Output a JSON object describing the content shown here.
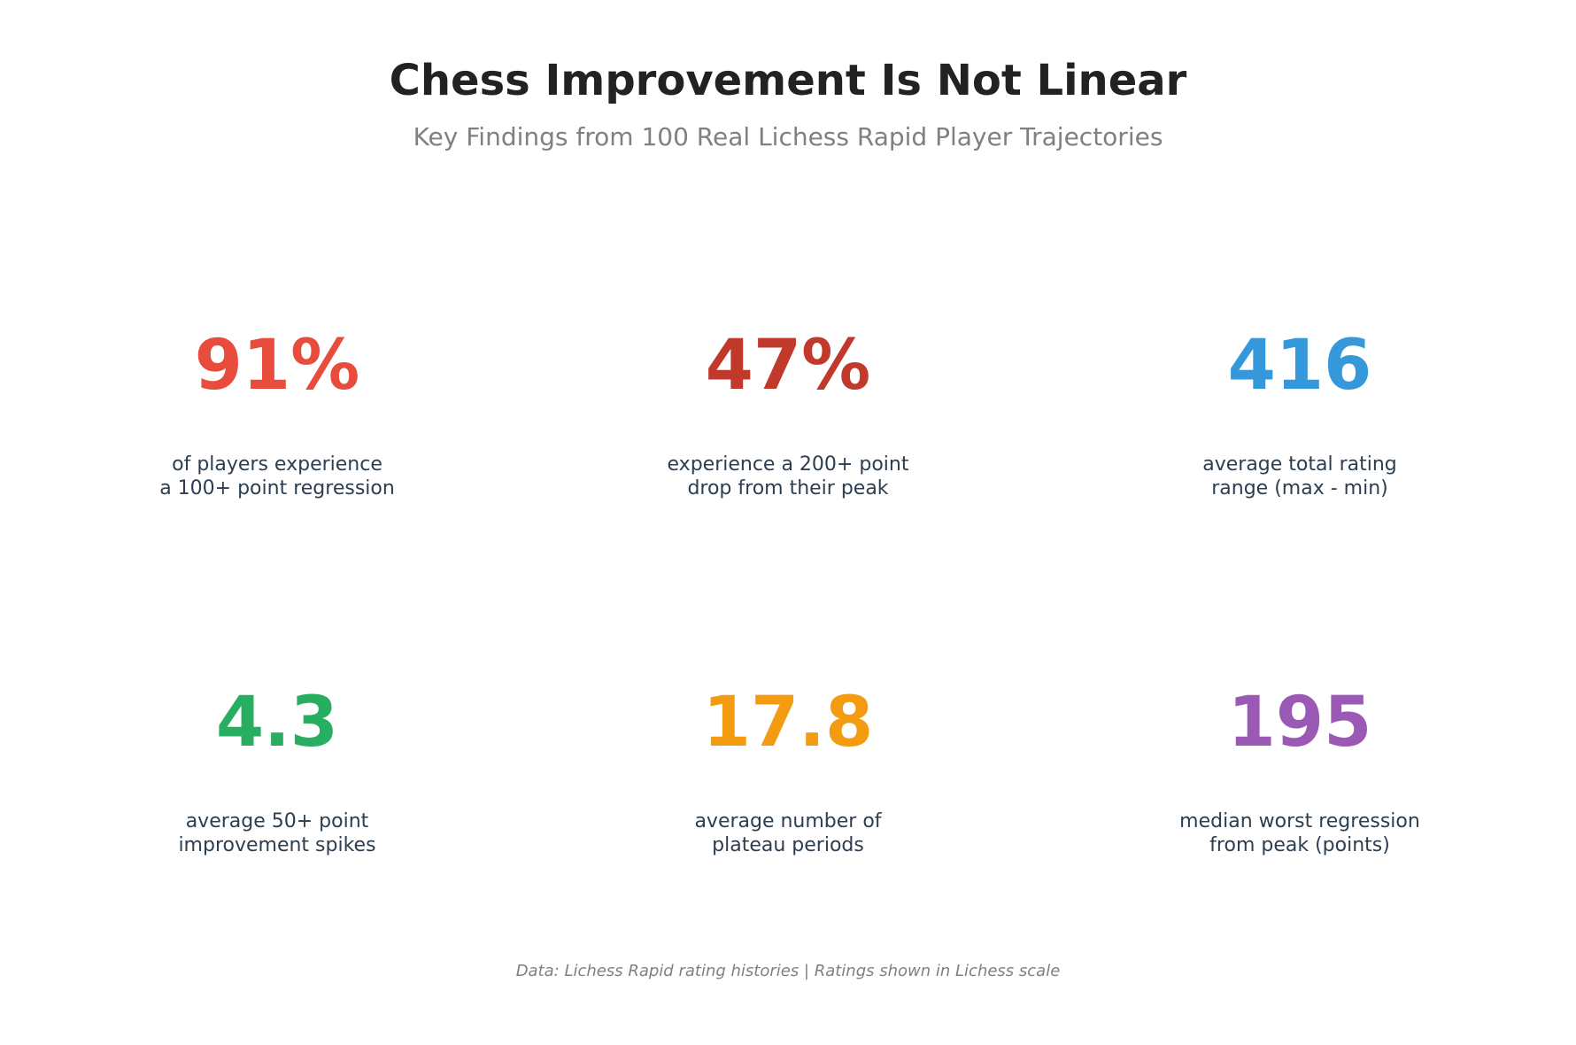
{
  "header": {
    "title": "Chess Improvement Is Not Linear",
    "subtitle": "Key Findings from 100 Real Lichess Rapid Player Trajectories"
  },
  "stats": [
    {
      "value": "91%",
      "description": "of players experience\na 100+ point regression",
      "color": "#e74c3c"
    },
    {
      "value": "47%",
      "description": "experience a 200+ point\ndrop from their peak",
      "color": "#c0392b"
    },
    {
      "value": "416",
      "description": "average total rating\nrange (max - min)",
      "color": "#3498db"
    },
    {
      "value": "4.3",
      "description": "average 50+ point\nimprovement spikes",
      "color": "#27ae60"
    },
    {
      "value": "17.8",
      "description": "average number of\nplateau periods",
      "color": "#f39c12"
    },
    {
      "value": "195",
      "description": "median worst regression\nfrom peak (points)",
      "color": "#9b59b6"
    }
  ],
  "footer": {
    "note": "Data: Lichess Rapid rating histories | Ratings shown in Lichess scale"
  },
  "colors": {
    "title": "#222222",
    "subtitle": "#808080",
    "description": "#2c3e50"
  }
}
